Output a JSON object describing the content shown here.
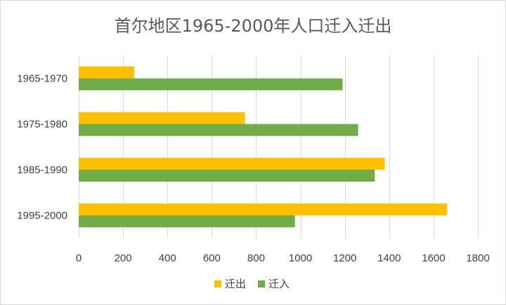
{
  "chart_data": {
    "type": "bar",
    "orientation": "horizontal",
    "title": "首尔地区1965-2000年人口迁入迁出",
    "categories": [
      "1965-1970",
      "1975-1980",
      "1985-1990",
      "1995-2000"
    ],
    "series": [
      {
        "name": "迁出",
        "color": "#FFC000",
        "values": [
          250,
          750,
          1380,
          1660
        ]
      },
      {
        "name": "迁入",
        "color": "#70AD47",
        "values": [
          1190,
          1260,
          1335,
          975
        ]
      }
    ],
    "xlim": [
      0,
      1800
    ],
    "xticks": [
      0,
      200,
      400,
      600,
      800,
      1000,
      1200,
      1400,
      1600,
      1800
    ],
    "grid": "vertical",
    "legend_position": "bottom"
  }
}
